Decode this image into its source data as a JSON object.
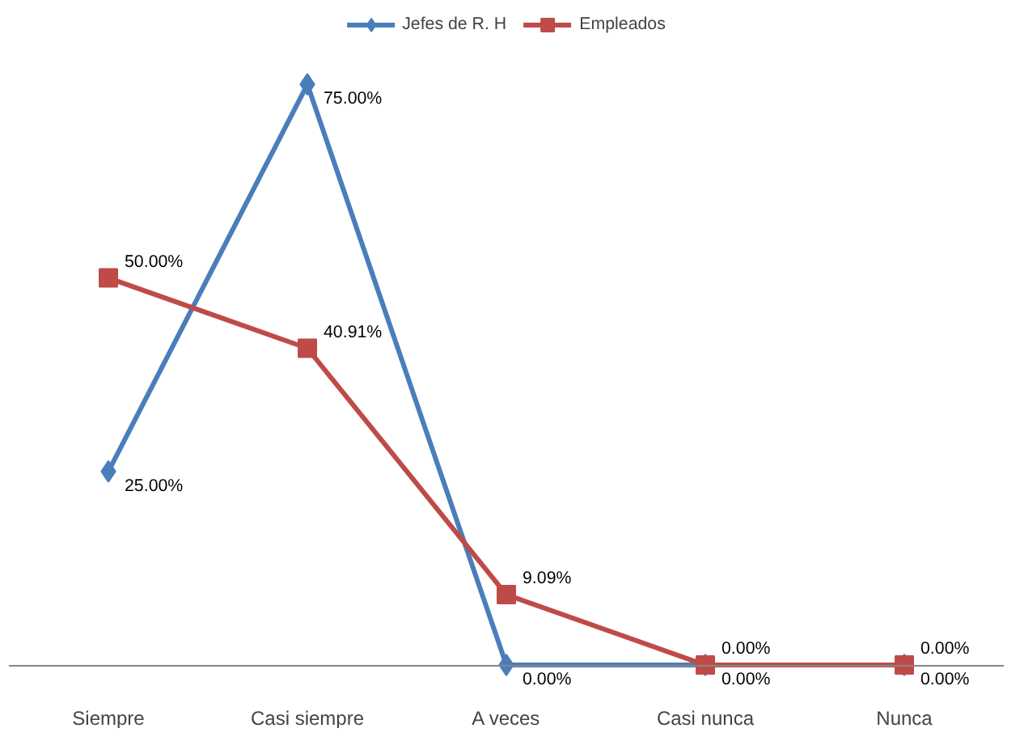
{
  "chart_data": {
    "type": "line",
    "categories": [
      "Siempre",
      "Casi siempre",
      "A veces",
      "Casi nunca",
      "Nunca"
    ],
    "series": [
      {
        "name": "Jefes de R. H",
        "color": "#4a7ebb",
        "marker": "diamond",
        "values": [
          25,
          75,
          0,
          0,
          0
        ],
        "value_labels": [
          "25.00%",
          "75.00%",
          "0.00%",
          "0.00%",
          "0.00%"
        ]
      },
      {
        "name": "Empleados",
        "color": "#be4b48",
        "marker": "square",
        "values": [
          50,
          40.91,
          9.09,
          0,
          0
        ],
        "value_labels": [
          "50.00%",
          "40.91%",
          "9.09%",
          "0.00%",
          "0.00%"
        ]
      }
    ],
    "legend": "top",
    "grid": false
  }
}
